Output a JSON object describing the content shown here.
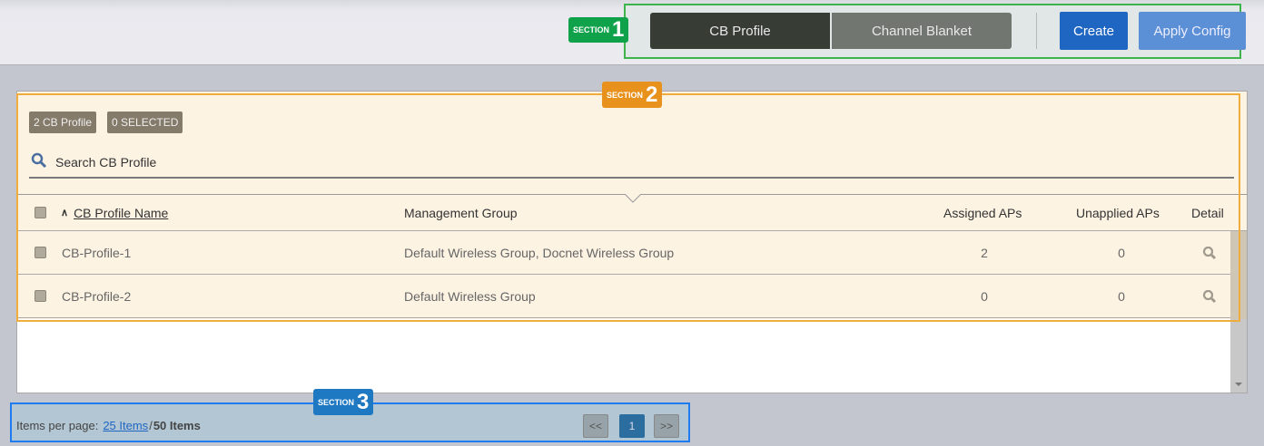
{
  "header": {
    "tabs": [
      {
        "label": "CB Profile",
        "active": true
      },
      {
        "label": "Channel Blanket",
        "active": false
      }
    ],
    "create_label": "Create",
    "apply_label": "Apply Config"
  },
  "annotations": {
    "s1": {
      "text": "SECTION",
      "num": "1",
      "color": "#0fa24b"
    },
    "s2": {
      "text": "SECTION",
      "num": "2",
      "color": "#e8911c"
    },
    "s3": {
      "text": "SECTION",
      "num": "3",
      "color": "#1e78c2"
    }
  },
  "list": {
    "count_badge": "2 CB Profile",
    "selected_badge": "0 SELECTED",
    "search_placeholder": "Search CB Profile",
    "columns": {
      "name": "CB Profile Name",
      "group": "Management Group",
      "assigned": "Assigned APs",
      "unapplied": "Unapplied APs",
      "detail": "Detail"
    },
    "sort_icon": "chevron-up-icon",
    "rows": [
      {
        "name": "CB-Profile-1",
        "group": "Default Wireless Group, Docnet Wireless Group",
        "assigned": "2",
        "unapplied": "0"
      },
      {
        "name": "CB-Profile-2",
        "group": "Default Wireless Group",
        "assigned": "0",
        "unapplied": "0"
      }
    ]
  },
  "footer": {
    "items_label": "Items per page:",
    "per_page": "25 Items",
    "sep": "/",
    "total": "50 Items",
    "prev": "<<",
    "page": "1",
    "next": ">>"
  }
}
